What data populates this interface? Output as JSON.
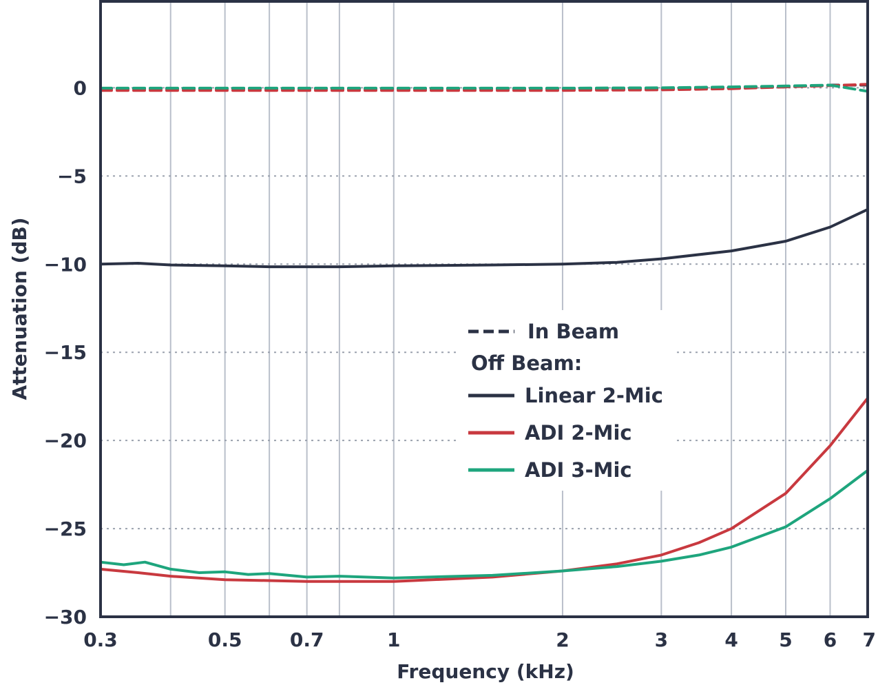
{
  "chart_data": {
    "type": "line",
    "xlabel": "Frequency (kHz)",
    "ylabel": "Attenuation (dB)",
    "x_scale": "log",
    "xlim": [
      0.3,
      7
    ],
    "ylim": [
      -30,
      5
    ],
    "x_ticks": [
      {
        "value": 0.3,
        "label": "0.3"
      },
      {
        "value": 0.5,
        "label": "0.5"
      },
      {
        "value": 0.7,
        "label": "0.7"
      },
      {
        "value": 1,
        "label": "1"
      },
      {
        "value": 2,
        "label": "2"
      },
      {
        "value": 3,
        "label": "3"
      },
      {
        "value": 4,
        "label": "4"
      },
      {
        "value": 5,
        "label": "5"
      },
      {
        "value": 6,
        "label": "6"
      },
      {
        "value": 7,
        "label": "7"
      }
    ],
    "x_minor_gridlines": [
      0.4,
      0.6,
      0.8
    ],
    "y_ticks": [
      {
        "value": 0,
        "label": "0"
      },
      {
        "value": -5,
        "label": "−5"
      },
      {
        "value": -10,
        "label": "−10"
      },
      {
        "value": -15,
        "label": "−15"
      },
      {
        "value": -20,
        "label": "−20"
      },
      {
        "value": -25,
        "label": "−25"
      },
      {
        "value": -30,
        "label": "−30"
      }
    ],
    "grid": {
      "vertical": "solid",
      "horizontal": "dotted"
    },
    "legend": {
      "placement": "center-right",
      "in_beam_label": "In Beam",
      "off_beam_heading": "Off Beam:",
      "entries": [
        "Linear 2-Mic",
        "ADI 2-Mic",
        "ADI 3-Mic"
      ]
    },
    "series": [
      {
        "name": "In Beam",
        "group": "In Beam",
        "color": "#2b3245",
        "dash": "dashed",
        "x": [
          0.3,
          0.5,
          0.7,
          1,
          2,
          3,
          4,
          5,
          6,
          7
        ],
        "y": [
          -0.05,
          -0.05,
          -0.05,
          -0.05,
          -0.05,
          -0.05,
          0.0,
          0.05,
          0.15,
          0.15
        ]
      },
      {
        "name": "ADI 2-Mic",
        "group": "In Beam",
        "color": "#c8393f",
        "dash": "dashed",
        "x": [
          0.3,
          0.5,
          0.7,
          1,
          2,
          3,
          4,
          5,
          6,
          7
        ],
        "y": [
          -0.15,
          -0.15,
          -0.15,
          -0.15,
          -0.15,
          -0.12,
          -0.05,
          0.05,
          0.12,
          0.2
        ]
      },
      {
        "name": "ADI 3-Mic",
        "group": "In Beam",
        "color": "#1ea57d",
        "dash": "dashed",
        "x": [
          0.3,
          0.5,
          0.7,
          1,
          2,
          3,
          4,
          5,
          6,
          7
        ],
        "y": [
          -0.02,
          -0.02,
          -0.02,
          -0.02,
          -0.02,
          0.0,
          0.05,
          0.1,
          0.15,
          -0.2
        ]
      },
      {
        "name": "Linear 2-Mic",
        "group": "Off Beam",
        "color": "#2b3245",
        "dash": "solid",
        "x": [
          0.3,
          0.35,
          0.4,
          0.5,
          0.6,
          0.7,
          0.8,
          1,
          1.5,
          2,
          2.5,
          3,
          4,
          5,
          6,
          7
        ],
        "y": [
          -10.0,
          -9.95,
          -10.05,
          -10.1,
          -10.15,
          -10.15,
          -10.15,
          -10.1,
          -10.05,
          -10.0,
          -9.9,
          -9.7,
          -9.25,
          -8.7,
          -7.9,
          -6.9
        ]
      },
      {
        "name": "ADI 2-Mic",
        "group": "Off Beam",
        "color": "#c8393f",
        "dash": "solid",
        "x": [
          0.3,
          0.35,
          0.4,
          0.5,
          0.6,
          0.7,
          0.8,
          1,
          1.5,
          2,
          2.5,
          3,
          3.5,
          4,
          5,
          6,
          7
        ],
        "y": [
          -27.3,
          -27.5,
          -27.7,
          -27.9,
          -27.95,
          -28.0,
          -28.0,
          -28.0,
          -27.75,
          -27.4,
          -27.0,
          -26.5,
          -25.8,
          -25.0,
          -23.0,
          -20.3,
          -17.6
        ]
      },
      {
        "name": "ADI 3-Mic",
        "group": "Off Beam",
        "color": "#1ea57d",
        "dash": "solid",
        "x": [
          0.3,
          0.33,
          0.36,
          0.4,
          0.45,
          0.5,
          0.55,
          0.6,
          0.7,
          0.8,
          1,
          1.5,
          2,
          2.5,
          3,
          3.5,
          4,
          5,
          6,
          7
        ],
        "y": [
          -26.9,
          -27.05,
          -26.9,
          -27.3,
          -27.5,
          -27.45,
          -27.6,
          -27.55,
          -27.75,
          -27.7,
          -27.8,
          -27.65,
          -27.4,
          -27.15,
          -26.85,
          -26.5,
          -26.05,
          -24.9,
          -23.3,
          -21.7
        ]
      }
    ]
  }
}
